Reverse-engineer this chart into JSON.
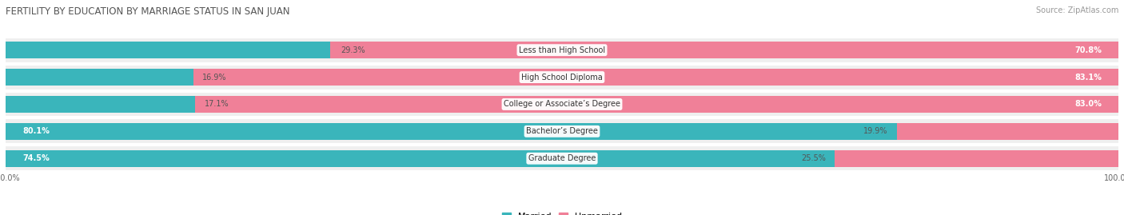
{
  "title": "FERTILITY BY EDUCATION BY MARRIAGE STATUS IN SAN JUAN",
  "source": "Source: ZipAtlas.com",
  "categories": [
    "Less than High School",
    "High School Diploma",
    "College or Associate’s Degree",
    "Bachelor’s Degree",
    "Graduate Degree"
  ],
  "married": [
    29.3,
    16.9,
    17.1,
    80.1,
    74.5
  ],
  "unmarried": [
    70.8,
    83.1,
    83.0,
    19.9,
    25.5
  ],
  "married_color": "#3ab5bb",
  "unmarried_color": "#f08098",
  "bg_row_color": "#efefef",
  "row_sep_color": "#ffffff",
  "bar_height": 0.62,
  "title_fontsize": 8.5,
  "source_fontsize": 7,
  "label_fontsize": 7,
  "pct_fontsize": 7,
  "tick_fontsize": 7,
  "legend_fontsize": 8
}
